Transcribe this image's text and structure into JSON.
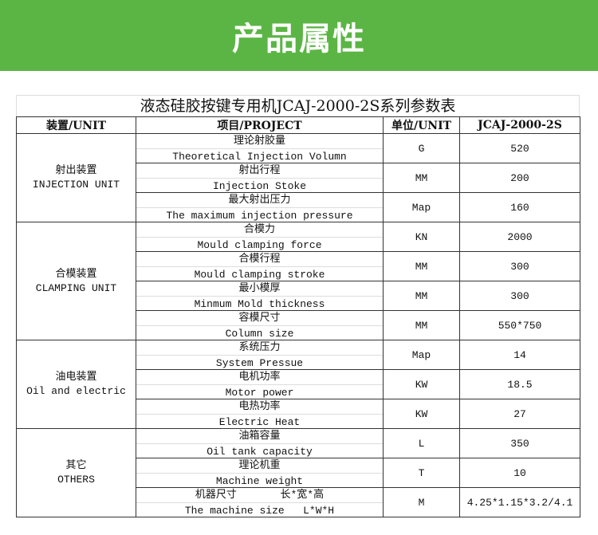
{
  "banner": {
    "title": "产品属性",
    "color": "#5bb544"
  },
  "table": {
    "title": "液态硅胶按键专用机JCAJ-2000-2S系列参数表",
    "headers": [
      "装置/UNIT",
      "项目/PROJECT",
      "单位/UNIT",
      "JCAJ-2000-2S"
    ],
    "groups": [
      {
        "cn": "射出装置",
        "en": "INJECTION UNIT",
        "rows": [
          {
            "cn": "理论射胶量",
            "en": "Theoretical Injection Volumn",
            "unit": "G",
            "value": "520"
          },
          {
            "cn": "射出行程",
            "en": "Injection Stoke",
            "unit": "MM",
            "value": "200"
          },
          {
            "cn": "最大射出压力",
            "en": "The maximum injection pressure",
            "unit": "Map",
            "value": "160"
          }
        ]
      },
      {
        "cn": "合模装置",
        "en": "CLAMPING UNIT",
        "rows": [
          {
            "cn": "合模力",
            "en": "Mould clamping force",
            "unit": "KN",
            "value": "2000"
          },
          {
            "cn": "合模行程",
            "en": "Mould clamping stroke",
            "unit": "MM",
            "value": "300"
          },
          {
            "cn": "最小模厚",
            "en": "Minmum Mold thickness",
            "unit": "MM",
            "value": "300"
          },
          {
            "cn": "容模尺寸",
            "en": "Column size",
            "unit": "MM",
            "value": "550*750"
          }
        ]
      },
      {
        "cn": "油电装置",
        "en": "Oil and electric",
        "rows": [
          {
            "cn": "系统压力",
            "en": "System Pressue",
            "unit": "Map",
            "value": "14"
          },
          {
            "cn": "电机功率",
            "en": "Motor power",
            "unit": "KW",
            "value": "18.5"
          },
          {
            "cn": "电热功率",
            "en": "Electric Heat",
            "unit": "KW",
            "value": "27"
          }
        ]
      },
      {
        "cn": "其它",
        "en": "OTHERS",
        "rows": [
          {
            "cn": "油箱容量",
            "en": "Oil tank capacity",
            "unit": "L",
            "value": "350"
          },
          {
            "cn": "理论机重",
            "en": "Machine weight",
            "unit": "T",
            "value": "10"
          },
          {
            "cn": "机器尺寸       长*宽*高",
            "en": "The machine size   L*W*H",
            "unit": "M",
            "value": "4.25*1.15*3.2/4.1"
          }
        ]
      }
    ]
  }
}
